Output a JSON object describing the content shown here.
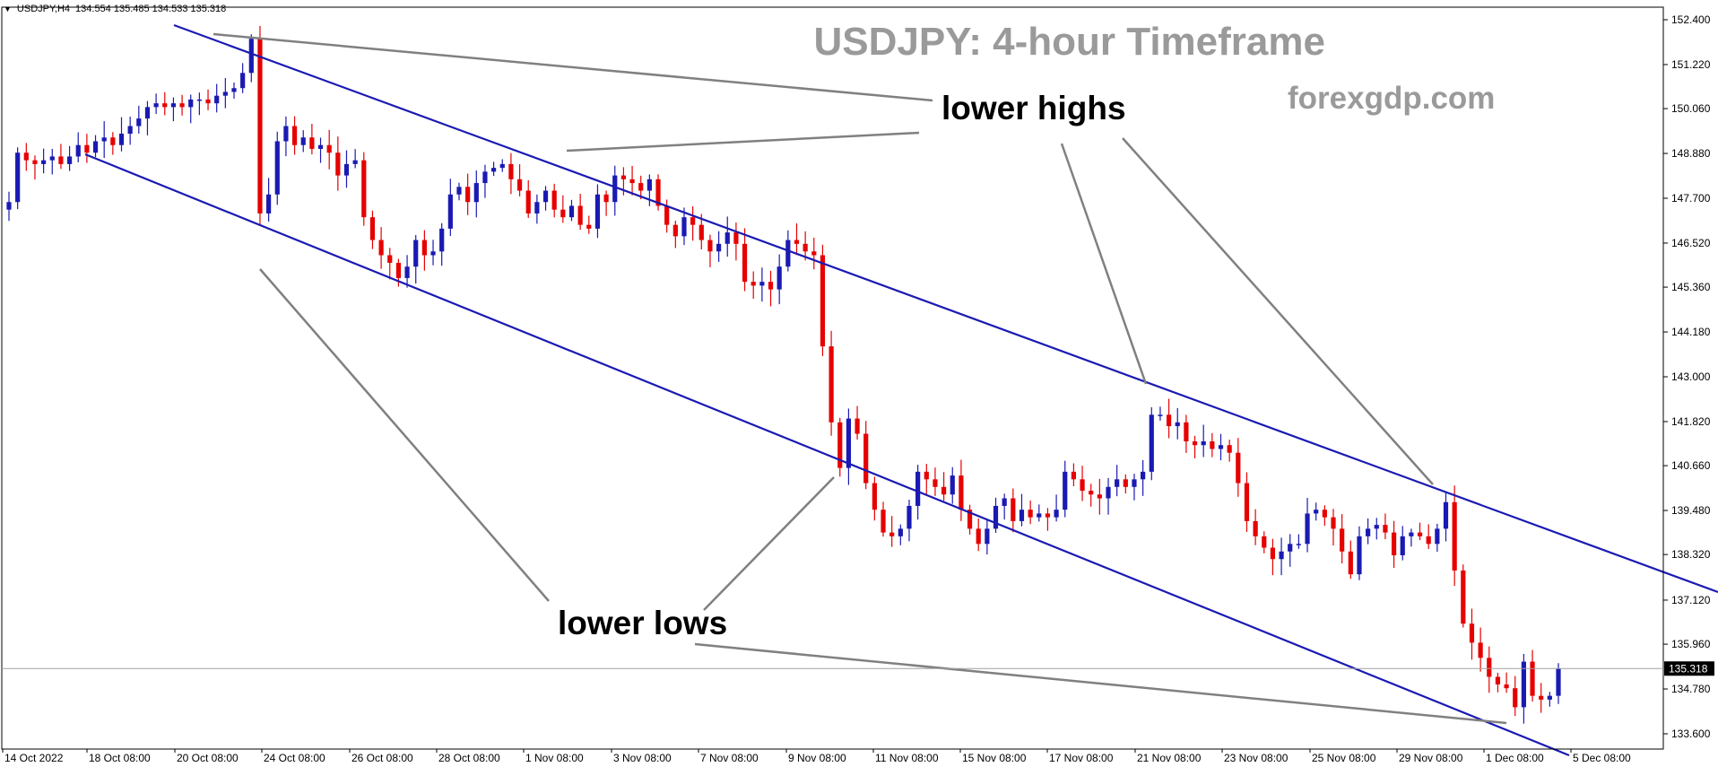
{
  "header": {
    "symbol": "USDJPY,H4",
    "ohlc": "134.554 135.485 134.533 135.318"
  },
  "watermark": {
    "title": "USDJPY: 4-hour Timeframe",
    "site": "forexgdp.com"
  },
  "annotations": {
    "highs": "lower highs",
    "lows": "lower lows"
  },
  "colors": {
    "bull": "#1a1ab3",
    "bear": "#e60000",
    "channel": "#1a1ab3",
    "pointer": "#808080",
    "axis": "#000000"
  },
  "chart_data": {
    "type": "candlestick",
    "symbol": "USDJPY",
    "timeframe": "H4",
    "current_price": "135.318",
    "ylim": [
      132.8,
      152.9
    ],
    "y_ticks": [
      "152.400",
      "151.220",
      "150.060",
      "148.880",
      "147.700",
      "146.520",
      "145.360",
      "144.180",
      "143.000",
      "141.820",
      "140.660",
      "139.480",
      "138.320",
      "137.120",
      "135.960",
      "134.780",
      "133.600"
    ],
    "x_ticks": [
      "14 Oct 2022",
      "18 Oct 08:00",
      "20 Oct 08:00",
      "24 Oct 08:00",
      "26 Oct 08:00",
      "28 Oct 08:00",
      "1 Nov 08:00",
      "3 Nov 08:00",
      "7 Nov 08:00",
      "9 Nov 08:00",
      "11 Nov 08:00",
      "15 Nov 08:00",
      "17 Nov 08:00",
      "21 Nov 08:00",
      "23 Nov 08:00",
      "25 Nov 08:00",
      "29 Nov 08:00",
      "1 Dec 08:00",
      "5 Dec 08:00"
    ],
    "closes": [
      147.6,
      148.9,
      148.7,
      148.6,
      148.7,
      148.8,
      148.6,
      148.8,
      149.1,
      148.9,
      149.2,
      149.3,
      149.1,
      149.4,
      149.6,
      149.8,
      150.1,
      150.2,
      150.1,
      150.2,
      150.1,
      150.3,
      150.3,
      150.2,
      150.4,
      150.5,
      150.6,
      151.0,
      151.9,
      147.3,
      147.8,
      149.2,
      149.6,
      149.1,
      149.3,
      149.0,
      149.1,
      148.9,
      148.3,
      148.6,
      148.7,
      147.2,
      146.6,
      146.2,
      146.0,
      145.6,
      145.9,
      146.6,
      146.2,
      146.3,
      146.9,
      147.8,
      148.0,
      147.6,
      148.1,
      148.4,
      148.5,
      148.6,
      148.2,
      147.9,
      147.3,
      147.6,
      147.9,
      147.4,
      147.2,
      147.5,
      147.0,
      146.9,
      147.8,
      147.6,
      148.3,
      148.2,
      148.1,
      147.9,
      148.2,
      147.5,
      147.0,
      146.7,
      147.2,
      147.0,
      146.6,
      146.3,
      146.5,
      146.8,
      146.5,
      145.5,
      145.4,
      145.5,
      145.3,
      145.9,
      146.6,
      146.5,
      146.3,
      146.2,
      143.8,
      141.8,
      140.6,
      141.9,
      141.5,
      140.2,
      139.5,
      138.9,
      138.8,
      139.0,
      139.6,
      140.5,
      140.3,
      140.1,
      139.9,
      140.4,
      139.5,
      139.0,
      138.6,
      139.0,
      139.6,
      139.8,
      139.2,
      139.5,
      139.3,
      139.4,
      139.3,
      139.5,
      140.5,
      140.3,
      140.0,
      139.9,
      139.8,
      140.1,
      140.3,
      140.1,
      140.3,
      140.5,
      142.0,
      142.0,
      141.7,
      141.8,
      141.3,
      141.2,
      141.3,
      141.1,
      141.2,
      141.0,
      140.2,
      139.2,
      138.8,
      138.5,
      138.2,
      138.4,
      138.6,
      138.6,
      139.4,
      139.5,
      139.3,
      139.0,
      138.4,
      137.8,
      138.8,
      139.0,
      139.1,
      138.9,
      138.3,
      138.8,
      138.9,
      138.8,
      138.6,
      139.0,
      139.7,
      137.9,
      136.5,
      136.0,
      135.6,
      135.1,
      134.9,
      134.8,
      134.3,
      135.5,
      134.6,
      134.5,
      134.6,
      135.318
    ]
  }
}
